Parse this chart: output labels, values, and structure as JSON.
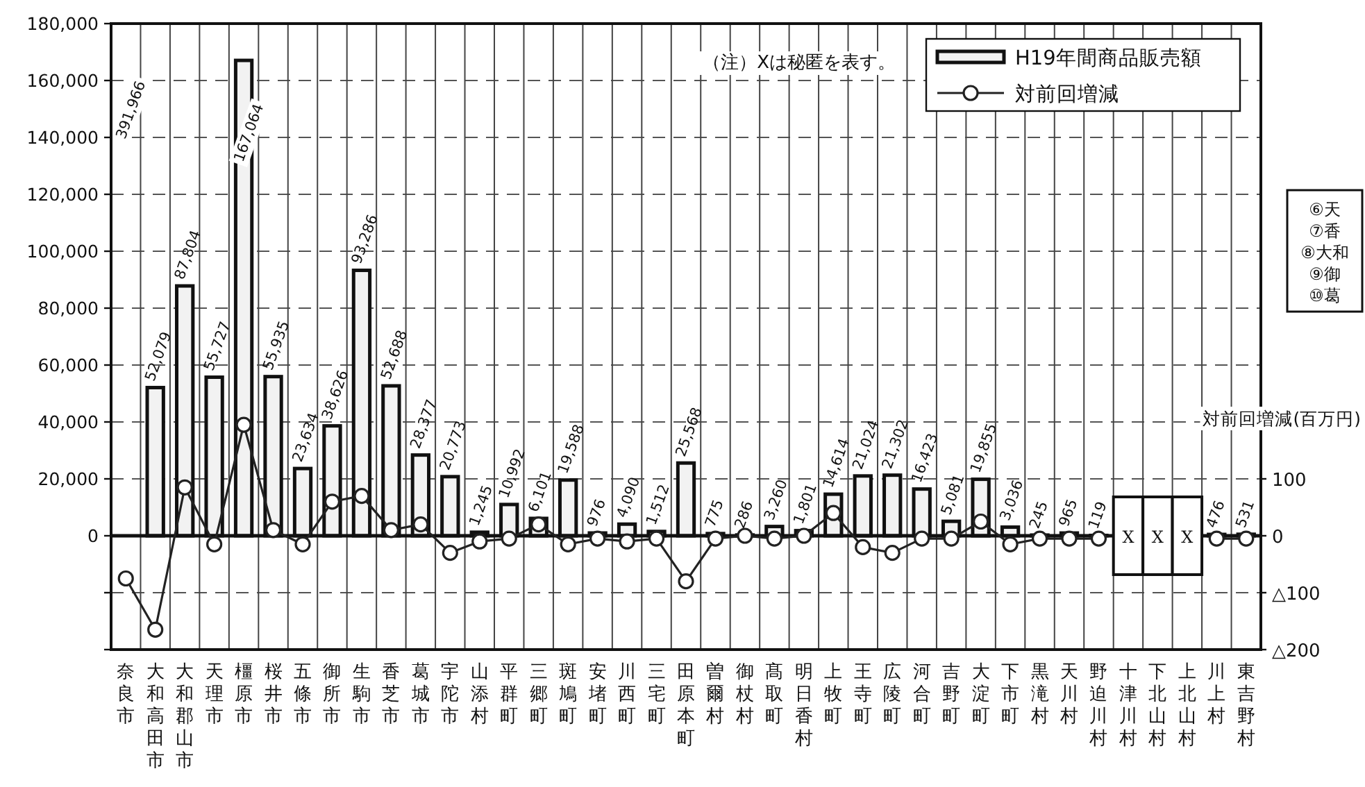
{
  "chart_data": {
    "type": "bar",
    "categories": [
      "奈良市",
      "大和高田市",
      "大和郡山市",
      "天理市",
      "橿原市",
      "桜井市",
      "五條市",
      "御所市",
      "生駒市",
      "香芝市",
      "葛城市",
      "宇陀市",
      "山添村",
      "平群町",
      "三郷町",
      "斑鳩町",
      "安堵町",
      "川西町",
      "三宅町",
      "田原本町",
      "曽爾村",
      "御杖村",
      "髙取町",
      "明日香村",
      "上牧町",
      "王寺町",
      "広陵町",
      "河合町",
      "吉野町",
      "大淀町",
      "下市町",
      "黒滝村",
      "天川村",
      "野迫川村",
      "十津川村",
      "下北山村",
      "上北山村",
      "川上村",
      "東吉野村"
    ],
    "series": [
      {
        "name": "H19年間商品販売額",
        "color": "#f2f2f2",
        "values": [
          null,
          52079,
          87804,
          55727,
          167064,
          55935,
          23634,
          38626,
          93286,
          52688,
          28377,
          20773,
          1245,
          10992,
          6101,
          19588,
          976,
          4090,
          1512,
          25568,
          775,
          286,
          3260,
          1801,
          14614,
          21024,
          21302,
          16423,
          5081,
          19855,
          3036,
          245,
          965,
          119,
          null,
          null,
          null,
          476,
          531
        ],
        "value_labels": [
          "391,966",
          "52,079",
          "87,804",
          "55,727",
          "167,064",
          "55,935",
          "23,634",
          "38,626",
          "93,286",
          "52,688",
          "28,377",
          "20,773",
          "1,245",
          "10,992",
          "6,101",
          "19,588",
          "976",
          "4,090",
          "1,512",
          "25,568",
          "775",
          "286",
          "3,260",
          "1,801",
          "14,614",
          "21,024",
          "21,302",
          "16,423",
          "5,081",
          "19,855",
          "3,036",
          "245",
          "965",
          "119",
          "X",
          "X",
          "X",
          "476",
          "531"
        ]
      },
      {
        "name": "対前回増減",
        "type": "line",
        "axis": "y2",
        "color": "#222222",
        "values": [
          -75,
          -165,
          85,
          -15,
          195,
          10,
          -15,
          60,
          70,
          10,
          20,
          -30,
          -10,
          -5,
          20,
          -15,
          -5,
          -10,
          -5,
          -80,
          -5,
          0,
          -5,
          0,
          40,
          -20,
          -30,
          -5,
          -5,
          25,
          -15,
          -5,
          -5,
          -5,
          null,
          null,
          null,
          -5,
          -5
        ]
      }
    ],
    "ylim": [
      -40000,
      180000
    ],
    "yticks": [
      {
        "value": -40000,
        "label": null
      },
      {
        "value": -20000,
        "label": null
      },
      0,
      {
        "value": 20000,
        "label": "20,000"
      },
      {
        "value": 40000,
        "label": "40,000"
      },
      {
        "value": 60000,
        "label": "60,000"
      },
      {
        "value": 80000,
        "label": "80,000"
      },
      {
        "value": 100000,
        "label": "100,000"
      },
      {
        "value": 120000,
        "label": "120,000"
      },
      {
        "value": 140000,
        "label": "140,000"
      },
      {
        "value": 160000,
        "label": "160,000"
      },
      {
        "value": 180000,
        "label": "180,000"
      }
    ],
    "y2lim": [
      -200,
      900
    ],
    "y2ticks": [
      {
        "value": -200,
        "label": "△200"
      },
      {
        "value": -100,
        "label": "△100"
      },
      0,
      100
    ],
    "y2label": "対前回増減(百万円)",
    "annotations": [
      "（注）Xは秘匿を表す。",
      "⑥天",
      "⑦香",
      "⑧大和",
      "⑨御",
      "⑩葛"
    ],
    "grid": true,
    "legend": "top right",
    "marker": "circle"
  }
}
